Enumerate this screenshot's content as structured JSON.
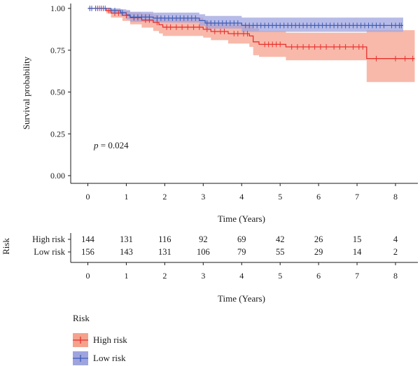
{
  "chart_data": [
    {
      "type": "line",
      "subtype": "kaplan-meier survival curve with 95% confidence band",
      "xlabel": "Time (Years)",
      "ylabel": "Survival probability",
      "xlim": [
        0,
        8.5
      ],
      "ylim": [
        0,
        1
      ],
      "x_ticks": [
        "0",
        "1",
        "2",
        "3",
        "4",
        "5",
        "6",
        "7",
        "8"
      ],
      "y_ticks": [
        "0.00",
        "0.25",
        "0.50",
        "0.75",
        "1.00"
      ],
      "grid": false,
      "annotation": {
        "italic": "p",
        "rest": " = 0.024"
      },
      "series": [
        {
          "name": "High risk",
          "color": "#e8302d",
          "band_color": "#f5a28d",
          "steps": [
            [
              0,
              1.0
            ],
            [
              0.48,
              0.986
            ],
            [
              0.6,
              0.972
            ],
            [
              0.9,
              0.958
            ],
            [
              1.1,
              0.944
            ],
            [
              1.4,
              0.93
            ],
            [
              1.7,
              0.916
            ],
            [
              1.85,
              0.902
            ],
            [
              1.95,
              0.888
            ],
            [
              3.0,
              0.875
            ],
            [
              3.2,
              0.862
            ],
            [
              3.65,
              0.849
            ],
            [
              4.2,
              0.835
            ],
            [
              4.3,
              0.8
            ],
            [
              4.45,
              0.785
            ],
            [
              5.15,
              0.77
            ],
            [
              7.25,
              0.7
            ],
            [
              8.5,
              0.7
            ]
          ],
          "ci_lower": [
            0.999,
            0.97,
            0.945,
            0.925,
            0.905,
            0.885,
            0.865,
            0.85,
            0.835,
            0.825,
            0.81,
            0.79,
            0.77,
            0.72,
            0.71,
            0.69,
            0.56,
            0.56
          ],
          "ci_upper": [
            1.0,
            1.0,
            0.995,
            0.985,
            0.975,
            0.97,
            0.96,
            0.95,
            0.945,
            0.925,
            0.915,
            0.905,
            0.895,
            0.88,
            0.865,
            0.855,
            0.87,
            0.87
          ],
          "censor_x": [
            0.2,
            0.3,
            0.4,
            0.55,
            0.7,
            0.8,
            1.0,
            1.2,
            1.3,
            1.5,
            1.6,
            1.8,
            2.05,
            2.15,
            2.3,
            2.45,
            2.6,
            2.75,
            2.9,
            3.1,
            3.3,
            3.45,
            3.55,
            3.8,
            3.9,
            4.05,
            4.15,
            4.6,
            4.7,
            4.8,
            4.9,
            5.0,
            5.3,
            5.45,
            5.6,
            5.75,
            5.9,
            6.05,
            6.2,
            6.4,
            6.55,
            6.7,
            6.9,
            7.05,
            7.15,
            7.5,
            8.0,
            8.25,
            8.45
          ]
        },
        {
          "name": "Low risk",
          "color": "#3b5cb8",
          "band_color": "#9fa4df",
          "steps": [
            [
              0,
              1.0
            ],
            [
              0.6,
              0.987
            ],
            [
              0.85,
              0.974
            ],
            [
              1.0,
              0.961
            ],
            [
              1.1,
              0.948
            ],
            [
              1.7,
              0.942
            ],
            [
              2.9,
              0.927
            ],
            [
              3.05,
              0.912
            ],
            [
              4.0,
              0.898
            ],
            [
              8.2,
              0.898
            ]
          ],
          "ci_lower": [
            0.999,
            0.975,
            0.955,
            0.935,
            0.92,
            0.915,
            0.895,
            0.88,
            0.86,
            0.86
          ],
          "ci_upper": [
            1.0,
            1.0,
            0.995,
            0.99,
            0.98,
            0.975,
            0.965,
            0.955,
            0.945,
            0.945
          ],
          "censor_x": [
            0.05,
            0.1,
            0.25,
            0.35,
            0.45,
            0.7,
            0.9,
            1.2,
            1.3,
            1.4,
            1.5,
            1.6,
            1.8,
            1.9,
            2.0,
            2.1,
            2.2,
            2.3,
            2.4,
            2.5,
            2.6,
            2.7,
            2.8,
            3.1,
            3.2,
            3.3,
            3.4,
            3.5,
            3.6,
            3.7,
            3.8,
            3.9,
            4.1,
            4.2,
            4.3,
            4.4,
            4.5,
            4.6,
            4.7,
            4.8,
            4.9,
            5.0,
            5.1,
            5.2,
            5.3,
            5.4,
            5.5,
            5.6,
            5.7,
            5.8,
            5.9,
            6.0,
            6.1,
            6.2,
            6.3,
            6.4,
            6.5,
            6.6,
            6.7,
            6.8,
            6.9,
            7.0,
            7.1,
            7.2,
            7.3,
            7.4,
            7.5,
            7.6,
            7.7,
            7.9,
            8.0,
            8.1,
            8.15
          ]
        }
      ]
    },
    {
      "type": "table",
      "subtype": "number at risk",
      "title": "Risk",
      "xlabel": "Time (Years)",
      "x_ticks": [
        "0",
        "1",
        "2",
        "3",
        "4",
        "5",
        "6",
        "7",
        "8"
      ],
      "rows": [
        {
          "label": "High risk",
          "values": [
            "144",
            "131",
            "116",
            "92",
            "69",
            "42",
            "26",
            "15",
            "4"
          ]
        },
        {
          "label": "Low risk",
          "values": [
            "156",
            "143",
            "131",
            "106",
            "79",
            "55",
            "29",
            "14",
            "2"
          ]
        }
      ]
    }
  ],
  "legend": {
    "title": "Risk",
    "items": [
      "High risk",
      "Low risk"
    ]
  }
}
